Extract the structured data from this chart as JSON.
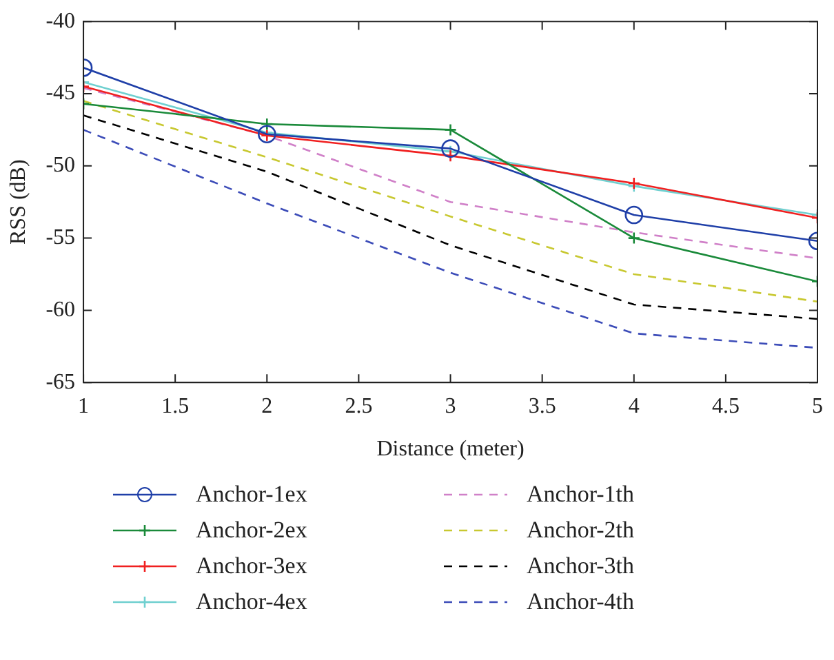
{
  "chart_data": {
    "type": "line",
    "xlabel": "Distance (meter)",
    "ylabel": "RSS (dB)",
    "x": [
      1,
      2,
      3,
      4,
      5
    ],
    "xlim": [
      1,
      5
    ],
    "xticks": [
      1,
      1.5,
      2,
      2.5,
      3,
      3.5,
      4,
      4.5,
      5
    ],
    "ylim": [
      -65,
      -40
    ],
    "yticks": [
      -65,
      -60,
      -55,
      -50,
      -45,
      -40
    ],
    "grid": false,
    "legend": "bottom",
    "series": [
      {
        "name": "Anchor-1ex",
        "color": "#1f3fa8",
        "marker": "circle",
        "line_style": "solid",
        "values": [
          -43.2,
          -47.8,
          -48.8,
          -53.4,
          -55.2
        ]
      },
      {
        "name": "Anchor-2ex",
        "color": "#1a8a3a",
        "marker": "cross",
        "line_style": "solid",
        "values": [
          -45.7,
          -47.1,
          -47.5,
          -55.0,
          -58.0
        ]
      },
      {
        "name": "Anchor-3ex",
        "color": "#f02020",
        "marker": "cross",
        "line_style": "solid",
        "values": [
          -44.5,
          -47.9,
          -49.3,
          -51.2,
          -53.6
        ]
      },
      {
        "name": "Anchor-4ex",
        "color": "#70d0d0",
        "marker": "cross",
        "line_style": "solid",
        "values": [
          -44.2,
          -47.7,
          -49.0,
          -51.4,
          -53.4
        ]
      },
      {
        "name": "Anchor-1th",
        "color": "#d080c8",
        "marker": "none",
        "line_style": "dashed",
        "values": [
          -44.6,
          -47.9,
          -52.5,
          -54.6,
          -56.4
        ]
      },
      {
        "name": "Anchor-2th",
        "color": "#c8c830",
        "marker": "none",
        "line_style": "dashed",
        "values": [
          -45.5,
          -49.4,
          -53.5,
          -57.5,
          -59.4
        ]
      },
      {
        "name": "Anchor-3th",
        "color": "#000000",
        "marker": "none",
        "line_style": "dashed",
        "values": [
          -46.5,
          -50.4,
          -55.5,
          -59.6,
          -60.6
        ]
      },
      {
        "name": "Anchor-4th",
        "color": "#3c4cb8",
        "marker": "none",
        "line_style": "dashed",
        "values": [
          -47.5,
          -52.6,
          -57.4,
          -61.6,
          -62.6
        ]
      }
    ]
  }
}
